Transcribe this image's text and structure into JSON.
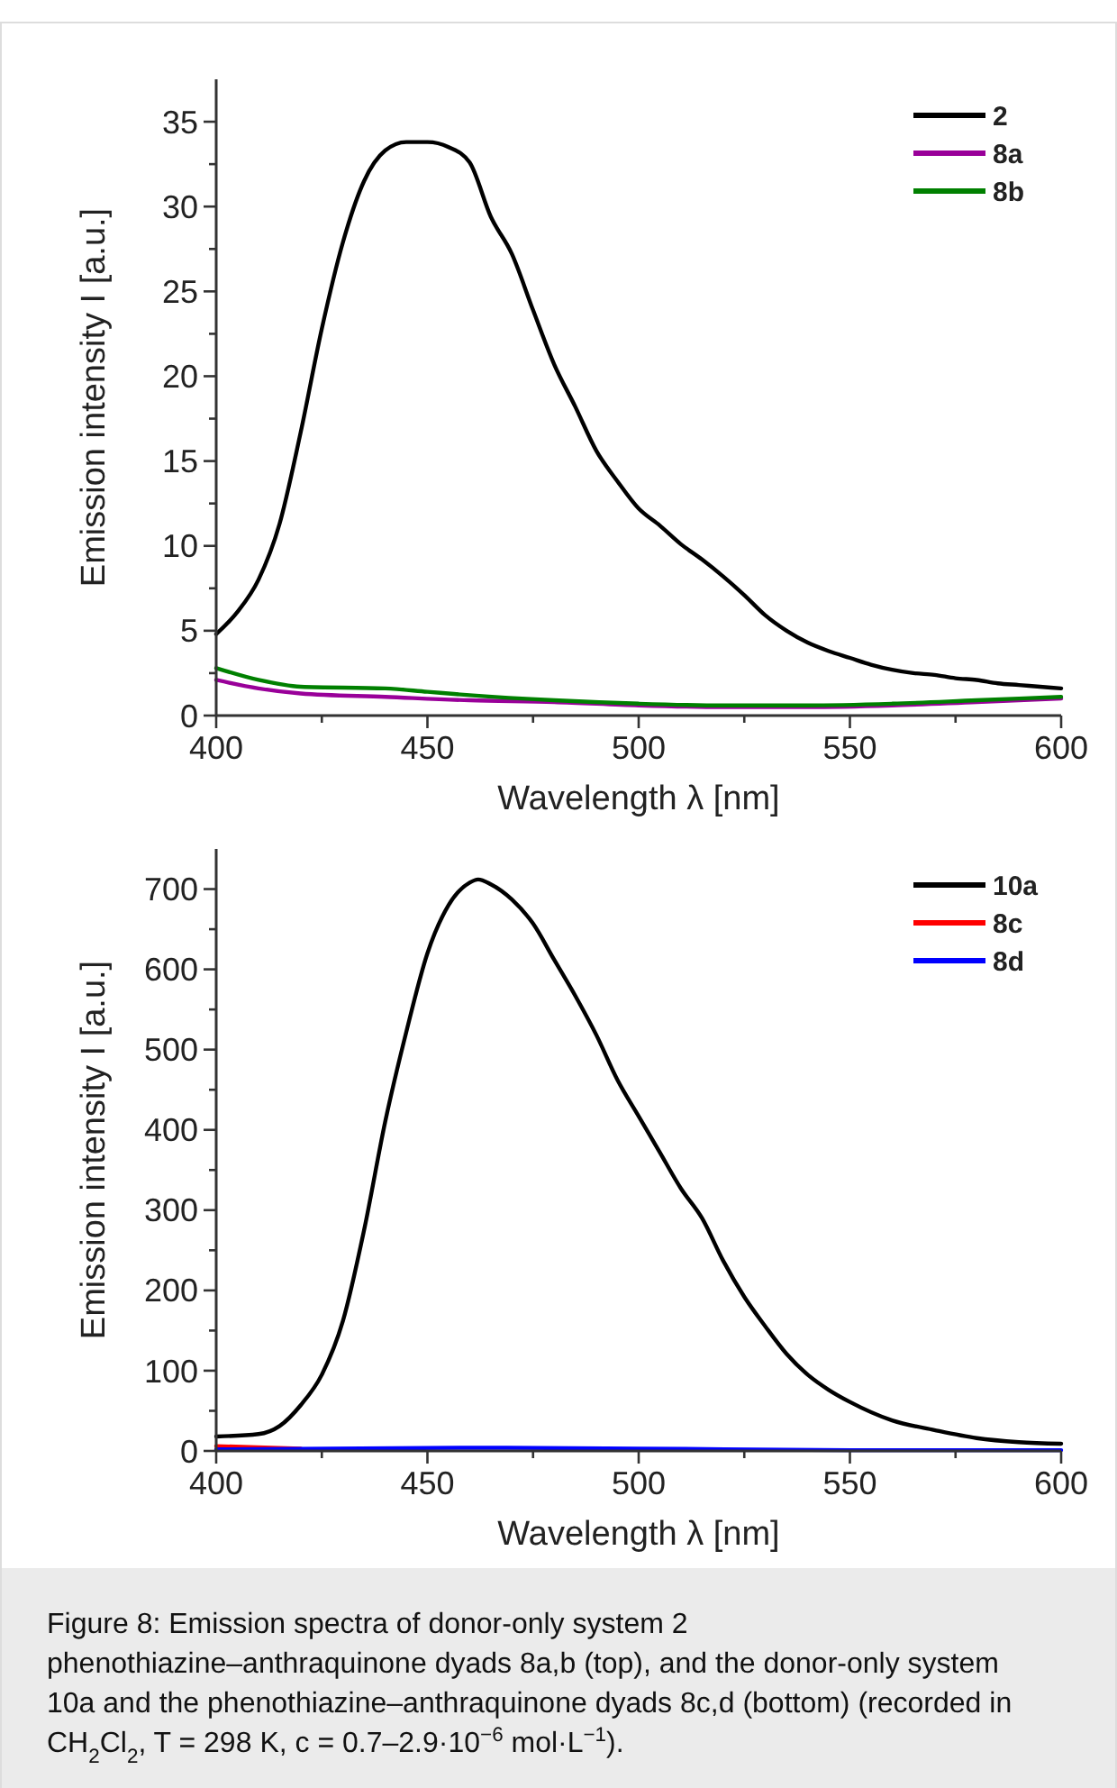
{
  "chart_data": [
    {
      "type": "line",
      "xlabel": "Wavelength λ [nm]",
      "ylabel": "Emission intensity I [a.u.]",
      "xlim": [
        400,
        600
      ],
      "ylim": [
        0,
        37.5
      ],
      "xticks": [
        400,
        {
          "value": 425,
          "label": null
        },
        450,
        {
          "value": 475,
          "label": null
        },
        500,
        {
          "value": 525,
          "label": null
        },
        550,
        {
          "value": 575,
          "label": null
        },
        600
      ],
      "yticks": [
        0,
        {
          "value": 2.5,
          "label": null
        },
        5,
        {
          "value": 7.5,
          "label": null
        },
        10,
        {
          "value": 12.5,
          "label": null
        },
        15,
        {
          "value": 17.5,
          "label": null
        },
        20,
        {
          "value": 22.5,
          "label": null
        },
        25,
        {
          "value": 27.5,
          "label": null
        },
        30,
        {
          "value": 32.5,
          "label": null
        },
        35
      ],
      "legend": "top right",
      "grid": false,
      "series": [
        {
          "name": "2",
          "color": "#000000",
          "x": [
            400,
            405,
            410,
            415,
            420,
            425,
            430,
            435,
            440,
            445,
            450,
            455,
            460,
            465,
            470,
            475,
            480,
            485,
            490,
            495,
            500,
            505,
            510,
            515,
            520,
            525,
            530,
            535,
            540,
            545,
            550,
            555,
            560,
            565,
            570,
            575,
            580,
            585,
            590,
            595,
            600
          ],
          "values": [
            4.8,
            6.1,
            8,
            11.3,
            16.7,
            22.8,
            27.9,
            31.5,
            33.3,
            33.8,
            33.8,
            33.5,
            32.6,
            29.4,
            27.2,
            23.9,
            20.7,
            18.2,
            15.6,
            13.8,
            12.2,
            11.2,
            10.1,
            9.2,
            8.2,
            7.1,
            5.9,
            5,
            4.3,
            3.8,
            3.4,
            3,
            2.7,
            2.5,
            2.4,
            2.2,
            2.1,
            1.9,
            1.8,
            1.7,
            1.6
          ]
        },
        {
          "name": "8a",
          "color": "#990099",
          "x": [
            400,
            410,
            420,
            440,
            460,
            480,
            500,
            520,
            540,
            560,
            580,
            600
          ],
          "values": [
            2.1,
            1.6,
            1.3,
            1.1,
            0.9,
            0.8,
            0.6,
            0.5,
            0.5,
            0.6,
            0.8,
            1
          ]
        },
        {
          "name": "8b",
          "color": "#008000",
          "x": [
            400,
            410,
            420,
            440,
            450,
            460,
            480,
            500,
            520,
            540,
            560,
            580,
            600
          ],
          "values": [
            2.8,
            2.1,
            1.7,
            1.6,
            1.4,
            1.2,
            0.9,
            0.7,
            0.6,
            0.6,
            0.7,
            0.9,
            1.1
          ]
        }
      ]
    },
    {
      "type": "line",
      "xlabel": "Wavelength λ [nm]",
      "ylabel": "Emission intensity I [a.u.]",
      "xlim": [
        400,
        600
      ],
      "ylim": [
        0,
        750
      ],
      "xticks": [
        400,
        {
          "value": 425,
          "label": null
        },
        450,
        {
          "value": 475,
          "label": null
        },
        500,
        {
          "value": 525,
          "label": null
        },
        550,
        {
          "value": 575,
          "label": null
        },
        600
      ],
      "yticks": [
        0,
        {
          "value": 50,
          "label": null
        },
        100,
        {
          "value": 150,
          "label": null
        },
        200,
        {
          "value": 250,
          "label": null
        },
        300,
        {
          "value": 350,
          "label": null
        },
        400,
        {
          "value": 450,
          "label": null
        },
        500,
        {
          "value": 550,
          "label": null
        },
        600,
        {
          "value": 650,
          "label": null
        },
        700
      ],
      "legend": "top right",
      "grid": false,
      "annotations": [
        "Figure 8: Emission spectra of donor-only system 2 phenothiazine–anthraquinone dyads 8a,b (top), and the donor-only system 10a and the phenothiazine–anthraquinone dyads 8c,d (bottom) (recorded in CH$_{2}$Cl$_{2}$, T = 298 K, c = 0.7–2.9·10$^{−6}$ mol·L$^{−1}$)."
      ],
      "series": [
        {
          "name": "10a",
          "color": "#000000",
          "x": [
            400,
            410,
            415,
            420,
            425,
            430,
            435,
            440,
            445,
            450,
            455,
            460,
            462,
            465,
            470,
            475,
            480,
            485,
            490,
            495,
            500,
            505,
            510,
            515,
            520,
            525,
            530,
            535,
            540,
            545,
            550,
            560,
            570,
            580,
            590,
            600
          ],
          "values": [
            18,
            21,
            31,
            57,
            95,
            162,
            275,
            410,
            522,
            620,
            680,
            708,
            712,
            706,
            687,
            657,
            612,
            567,
            518,
            462,
            417,
            372,
            327,
            290,
            237,
            192,
            155,
            121,
            95,
            76,
            61,
            38,
            26,
            16,
            11,
            9
          ]
        },
        {
          "name": "8c",
          "color": "#ff0000",
          "x": [
            400,
            420
          ],
          "values": [
            6,
            3
          ]
        },
        {
          "name": "8d",
          "color": "#0000ff",
          "x": [
            400,
            460,
            500,
            550,
            600
          ],
          "values": [
            2,
            4,
            3,
            1,
            1
          ]
        }
      ]
    }
  ]
}
